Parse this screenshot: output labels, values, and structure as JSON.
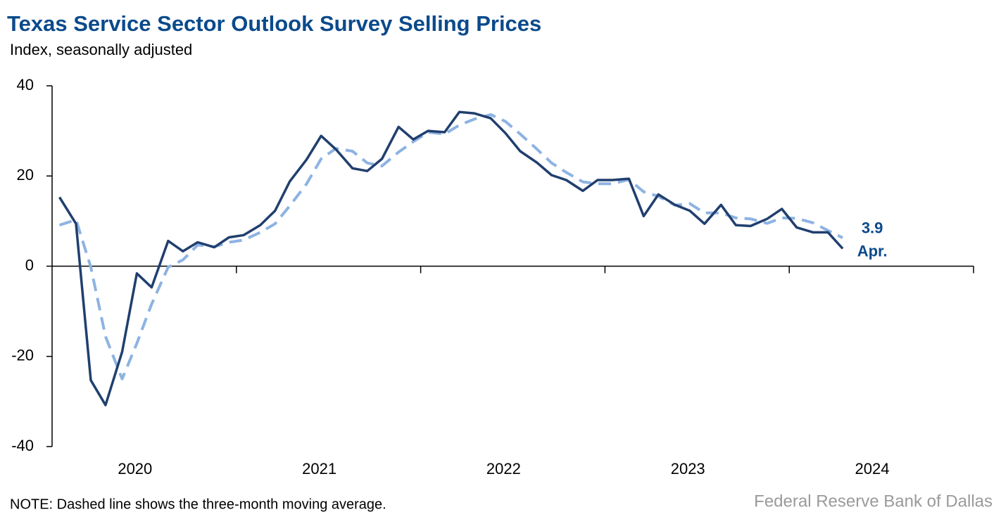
{
  "chart_data": {
    "type": "line",
    "title": "Texas Service Sector Outlook Survey Selling Prices",
    "subtitle": "Index, seasonally adjusted",
    "note": "NOTE: Dashed line shows the three-month moving average.",
    "source": "Federal Reserve Bank of Dallas",
    "annotations": [
      "3.9",
      "Apr."
    ],
    "x": [
      2020.04,
      2020.13,
      2020.21,
      2020.29,
      2020.38,
      2020.46,
      2020.54,
      2020.63,
      2020.71,
      2020.79,
      2020.88,
      2020.96,
      2021.04,
      2021.13,
      2021.21,
      2021.29,
      2021.38,
      2021.46,
      2021.54,
      2021.63,
      2021.71,
      2021.79,
      2021.88,
      2021.96,
      2022.04,
      2022.13,
      2022.21,
      2022.29,
      2022.38,
      2022.46,
      2022.54,
      2022.63,
      2022.71,
      2022.79,
      2022.88,
      2022.96,
      2023.04,
      2023.13,
      2023.21,
      2023.29,
      2023.38,
      2023.46,
      2023.54,
      2023.63,
      2023.71,
      2023.79,
      2023.88,
      2023.96,
      2024.04,
      2024.13,
      2024.21,
      2024.29
    ],
    "series": [
      {
        "name": "Selling prices",
        "color": "#203f6e",
        "dash": false,
        "values": [
          15.3,
          9.4,
          -25.3,
          -30.8,
          -19,
          -1.6,
          -4.7,
          5.6,
          3.3,
          5.3,
          4.2,
          6.4,
          6.9,
          9.1,
          12.3,
          18.8,
          23.6,
          28.9,
          25.9,
          21.7,
          21.1,
          23.8,
          30.9,
          28.1,
          30,
          29.7,
          34.2,
          33.9,
          32.8,
          29.5,
          25.5,
          23,
          20.2,
          19.1,
          16.7,
          19.1,
          19.1,
          19.4,
          11.1,
          15.9,
          13.6,
          12.3,
          9.4,
          13.6,
          9.1,
          8.9,
          10.5,
          12.7,
          8.6,
          7.5,
          7.5,
          3.9
        ]
      },
      {
        "name": "Three-month moving average",
        "color": "#8db3e2",
        "dash": true,
        "values": [
          9.1,
          10.3,
          -0.2,
          -15.6,
          -25,
          -17.1,
          -8.4,
          -0.2,
          1.4,
          4.7,
          4.3,
          5.3,
          5.8,
          7.5,
          9.4,
          13.4,
          18.2,
          23.8,
          26.1,
          25.5,
          22.9,
          22.2,
          25.3,
          27.6,
          29.7,
          29.3,
          31.3,
          32.6,
          33.6,
          32.1,
          29.3,
          26,
          22.9,
          20.8,
          18.7,
          18.3,
          18.3,
          19.2,
          16.5,
          15.5,
          13.5,
          13.9,
          11.8,
          11.8,
          10.7,
          10.5,
          9.5,
          10.7,
          10.6,
          9.6,
          7.9,
          6.3
        ]
      }
    ],
    "xlim": [
      2020,
      2025
    ],
    "xticks": [
      2021,
      2022,
      2023,
      2024,
      2025
    ],
    "year_labels": [
      {
        "value": 2020.45,
        "label": "2020"
      },
      {
        "value": 2021.45,
        "label": "2021"
      },
      {
        "value": 2022.45,
        "label": "2022"
      },
      {
        "value": 2023.45,
        "label": "2023"
      },
      {
        "value": 2024.45,
        "label": "2024"
      }
    ],
    "ylim": [
      -40,
      40
    ],
    "yticks": [
      -40,
      -20,
      0,
      20,
      40
    ],
    "grid": false
  }
}
